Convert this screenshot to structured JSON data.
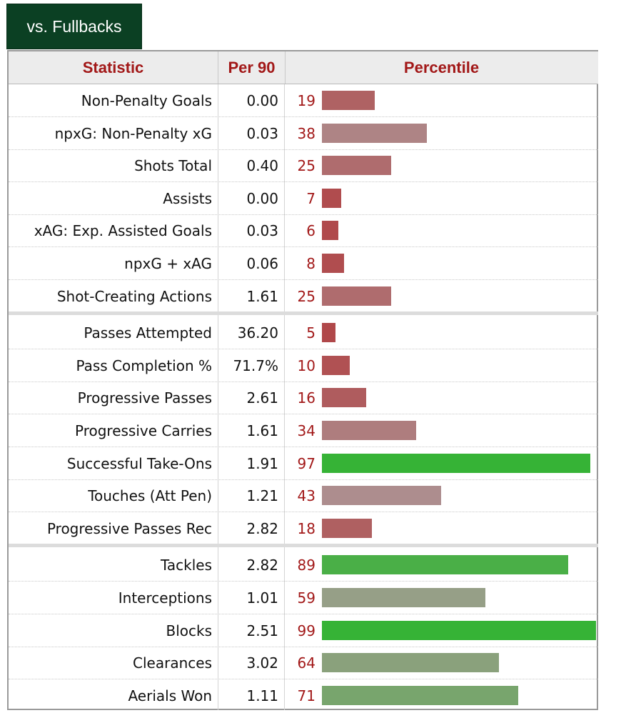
{
  "tab_label": "vs. Fullbacks",
  "headers": {
    "statistic": "Statistic",
    "per90": "Per 90",
    "percentile": "Percentile"
  },
  "colors": {
    "header_text": "#a21818",
    "tab_bg": "#0b4023",
    "low": "#b0484a",
    "mid": "#ad9a9a",
    "high": "#36b336"
  },
  "chart_data": {
    "type": "bar",
    "orientation": "horizontal",
    "xlim": [
      0,
      100
    ],
    "groups": [
      {
        "rows": [
          {
            "stat": "Non-Penalty Goals",
            "per90": "0.00",
            "percentile": 19
          },
          {
            "stat": "npxG: Non-Penalty xG",
            "per90": "0.03",
            "percentile": 38
          },
          {
            "stat": "Shots Total",
            "per90": "0.40",
            "percentile": 25
          },
          {
            "stat": "Assists",
            "per90": "0.00",
            "percentile": 7
          },
          {
            "stat": "xAG: Exp. Assisted Goals",
            "per90": "0.03",
            "percentile": 6
          },
          {
            "stat": "npxG + xAG",
            "per90": "0.06",
            "percentile": 8
          },
          {
            "stat": "Shot-Creating Actions",
            "per90": "1.61",
            "percentile": 25
          }
        ]
      },
      {
        "rows": [
          {
            "stat": "Passes Attempted",
            "per90": "36.20",
            "percentile": 5
          },
          {
            "stat": "Pass Completion %",
            "per90": "71.7%",
            "percentile": 10
          },
          {
            "stat": "Progressive Passes",
            "per90": "2.61",
            "percentile": 16
          },
          {
            "stat": "Progressive Carries",
            "per90": "1.61",
            "percentile": 34
          },
          {
            "stat": "Successful Take-Ons",
            "per90": "1.91",
            "percentile": 97
          },
          {
            "stat": "Touches (Att Pen)",
            "per90": "1.21",
            "percentile": 43
          },
          {
            "stat": "Progressive Passes Rec",
            "per90": "2.82",
            "percentile": 18
          }
        ]
      },
      {
        "rows": [
          {
            "stat": "Tackles",
            "per90": "2.82",
            "percentile": 89
          },
          {
            "stat": "Interceptions",
            "per90": "1.01",
            "percentile": 59
          },
          {
            "stat": "Blocks",
            "per90": "2.51",
            "percentile": 99
          },
          {
            "stat": "Clearances",
            "per90": "3.02",
            "percentile": 64
          },
          {
            "stat": "Aerials Won",
            "per90": "1.11",
            "percentile": 71
          }
        ]
      }
    ]
  }
}
